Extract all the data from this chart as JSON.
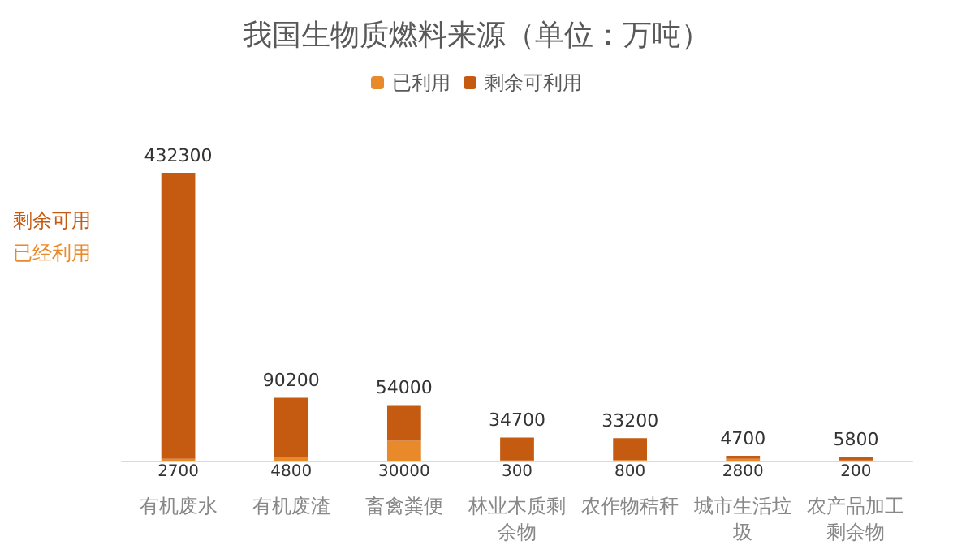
{
  "chart_data": {
    "type": "bar",
    "title": "我国生物质燃料来源（单位：万吨）",
    "stacked": true,
    "data_labels": true,
    "legend": "top",
    "categories": [
      "有机废水",
      "有机废渣",
      "畜禽粪便",
      "林业木质剩余物",
      "农作物秸秆",
      "城市生活垃圾",
      "农产品加工剩余物"
    ],
    "series": [
      {
        "name": "已利用",
        "color": "#e8892a",
        "values": [
          2700,
          4800,
          30000,
          300,
          800,
          2800,
          200
        ]
      },
      {
        "name": "剩余可利用",
        "color": "#c55a11",
        "values": [
          432300,
          90200,
          54000,
          34700,
          33200,
          4700,
          5800
        ]
      }
    ],
    "annotations": [
      "已经利用",
      "剩余可用"
    ]
  }
}
